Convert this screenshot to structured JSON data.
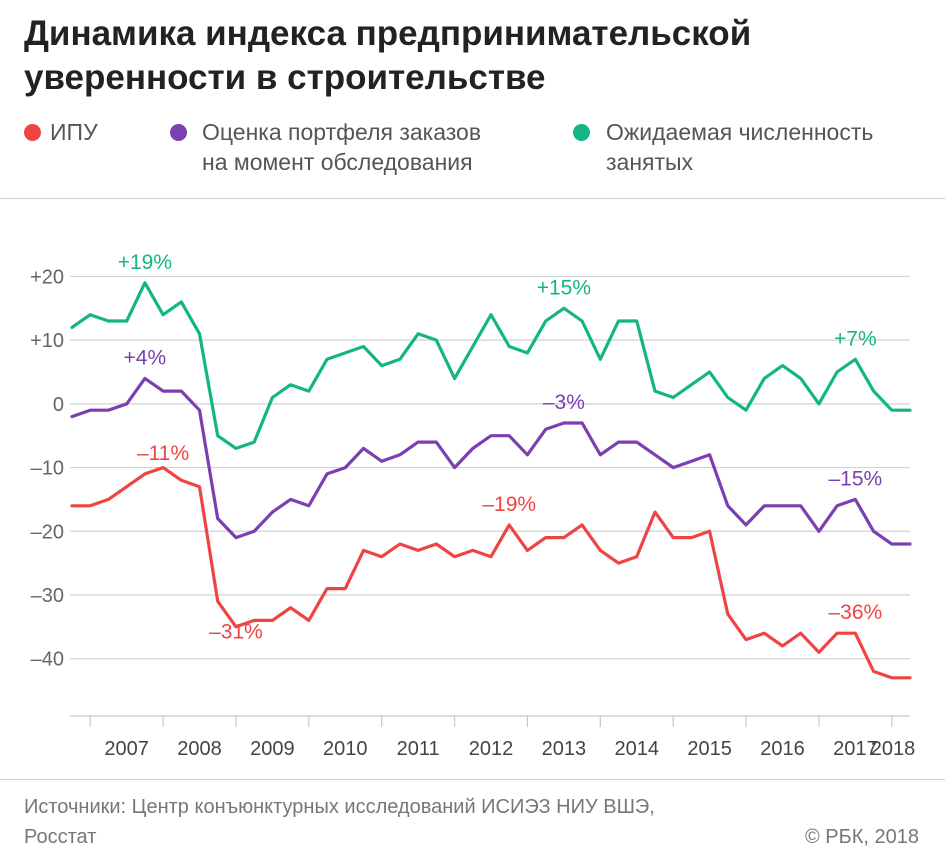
{
  "header": {
    "title_line1": "Динамика индекса предпринимательской",
    "title_line2": "уверенности в строительстве"
  },
  "legend": [
    {
      "label_line1": "ИПУ",
      "label_line2": "",
      "color": "#ef4444"
    },
    {
      "label_line1": "Оценка портфеля заказов",
      "label_line2": "на момент обследования",
      "color": "#7a3fb0"
    },
    {
      "label_line1": "Ожидаемая численность",
      "label_line2": "занятых",
      "color": "#14b584"
    }
  ],
  "footer": {
    "source_line1": "Источники: Центр конъюнктурных исследований ИСИЭЗ НИУ ВШЭ,",
    "source_line2": "Росстат",
    "copyright": "© РБК, 2018"
  },
  "chart_data": {
    "type": "line",
    "title": "Динамика индекса предпринимательской уверенности в строительстве",
    "xlabel": "",
    "ylabel": "",
    "x_tick_labels": [
      "2007",
      "2008",
      "2009",
      "2010",
      "2011",
      "2012",
      "2013",
      "2014",
      "2015",
      "2016",
      "2017",
      "2018"
    ],
    "y_ticks": [
      20,
      10,
      0,
      -10,
      -20,
      -30,
      -40
    ],
    "y_tick_labels": [
      "+20",
      "+10",
      "0",
      "–10",
      "–20",
      "–30",
      "–40"
    ],
    "ylim": [
      -49,
      32
    ],
    "x_range": [
      2006.75,
      2018.25
    ],
    "grid": "horizontal",
    "legend_position": "top",
    "series": [
      {
        "name": "ИПУ",
        "color": "#ef4444",
        "x": [
          2006.75,
          2007.0,
          2007.25,
          2007.5,
          2007.75,
          2008.0,
          2008.25,
          2008.5,
          2008.75,
          2009.0,
          2009.25,
          2009.5,
          2009.75,
          2010.0,
          2010.25,
          2010.5,
          2010.75,
          2011.0,
          2011.25,
          2011.5,
          2011.75,
          2012.0,
          2012.25,
          2012.5,
          2012.75,
          2013.0,
          2013.25,
          2013.5,
          2013.75,
          2014.0,
          2014.25,
          2014.5,
          2014.75,
          2015.0,
          2015.25,
          2015.5,
          2015.75,
          2016.0,
          2016.25,
          2016.5,
          2016.75,
          2017.0,
          2017.25,
          2017.5,
          2017.75,
          2018.0,
          2018.25
        ],
        "values": [
          -16,
          -16,
          -15,
          -13,
          -11,
          -10,
          -12,
          -13,
          -31,
          -35,
          -34,
          -34,
          -32,
          -34,
          -29,
          -29,
          -23,
          -24,
          -22,
          -23,
          -22,
          -24,
          -23,
          -24,
          -19,
          -23,
          -21,
          -21,
          -19,
          -23,
          -25,
          -24,
          -17,
          -21,
          -21,
          -20,
          -33,
          -37,
          -36,
          -38,
          -36,
          -39,
          -36,
          -36,
          -42,
          -43,
          -43
        ]
      },
      {
        "name": "Оценка портфеля заказов на момент обследования",
        "color": "#7a3fb0",
        "x": [
          2006.75,
          2007.0,
          2007.25,
          2007.5,
          2007.75,
          2008.0,
          2008.25,
          2008.5,
          2008.75,
          2009.0,
          2009.25,
          2009.5,
          2009.75,
          2010.0,
          2010.25,
          2010.5,
          2010.75,
          2011.0,
          2011.25,
          2011.5,
          2011.75,
          2012.0,
          2012.25,
          2012.5,
          2012.75,
          2013.0,
          2013.25,
          2013.5,
          2013.75,
          2014.0,
          2014.25,
          2014.5,
          2014.75,
          2015.0,
          2015.25,
          2015.5,
          2015.75,
          2016.0,
          2016.25,
          2016.5,
          2016.75,
          2017.0,
          2017.25,
          2017.5,
          2017.75,
          2018.0,
          2018.25
        ],
        "values": [
          -2,
          -1,
          -1,
          0,
          4,
          2,
          2,
          -1,
          -18,
          -21,
          -20,
          -17,
          -15,
          -16,
          -11,
          -10,
          -7,
          -9,
          -8,
          -6,
          -6,
          -10,
          -7,
          -5,
          -5,
          -8,
          -4,
          -3,
          -3,
          -8,
          -6,
          -6,
          -8,
          -10,
          -9,
          -8,
          -16,
          -19,
          -16,
          -16,
          -16,
          -20,
          -16,
          -15,
          -20,
          -22,
          -22
        ]
      },
      {
        "name": "Ожидаемая численность занятых",
        "color": "#14b584",
        "x": [
          2006.75,
          2007.0,
          2007.25,
          2007.5,
          2007.75,
          2008.0,
          2008.25,
          2008.5,
          2008.75,
          2009.0,
          2009.25,
          2009.5,
          2009.75,
          2010.0,
          2010.25,
          2010.5,
          2010.75,
          2011.0,
          2011.25,
          2011.5,
          2011.75,
          2012.0,
          2012.25,
          2012.5,
          2012.75,
          2013.0,
          2013.25,
          2013.5,
          2013.75,
          2014.0,
          2014.25,
          2014.5,
          2014.75,
          2015.0,
          2015.25,
          2015.5,
          2015.75,
          2016.0,
          2016.25,
          2016.5,
          2016.75,
          2017.0,
          2017.25,
          2017.5,
          2017.75,
          2018.0,
          2018.25
        ],
        "values": [
          12,
          14,
          13,
          13,
          19,
          14,
          16,
          11,
          -5,
          -7,
          -6,
          1,
          3,
          2,
          7,
          8,
          9,
          6,
          7,
          11,
          10,
          4,
          9,
          14,
          9,
          8,
          13,
          15,
          13,
          7,
          13,
          13,
          2,
          1,
          3,
          5,
          1,
          -1,
          4,
          6,
          4,
          0,
          5,
          7,
          2,
          -1,
          -1
        ]
      }
    ],
    "annotations": [
      {
        "text": "+19%",
        "series": 2,
        "x": 2007.75,
        "y": 19
      },
      {
        "text": "+15%",
        "series": 2,
        "x": 2013.5,
        "y": 15
      },
      {
        "text": "+7%",
        "series": 2,
        "x": 2017.5,
        "y": 7
      },
      {
        "text": "+4%",
        "series": 1,
        "x": 2007.75,
        "y": 4
      },
      {
        "text": "–3%",
        "series": 1,
        "x": 2013.5,
        "y": -3
      },
      {
        "text": "–15%",
        "series": 1,
        "x": 2017.5,
        "y": -15
      },
      {
        "text": "–11%",
        "series": 0,
        "x": 2008.0,
        "y": -11
      },
      {
        "text": "–31%",
        "series": 0,
        "x": 2009.0,
        "y": -31
      },
      {
        "text": "–19%",
        "series": 0,
        "x": 2012.75,
        "y": -19
      },
      {
        "text": "–36%",
        "series": 0,
        "x": 2017.5,
        "y": -36
      }
    ]
  }
}
